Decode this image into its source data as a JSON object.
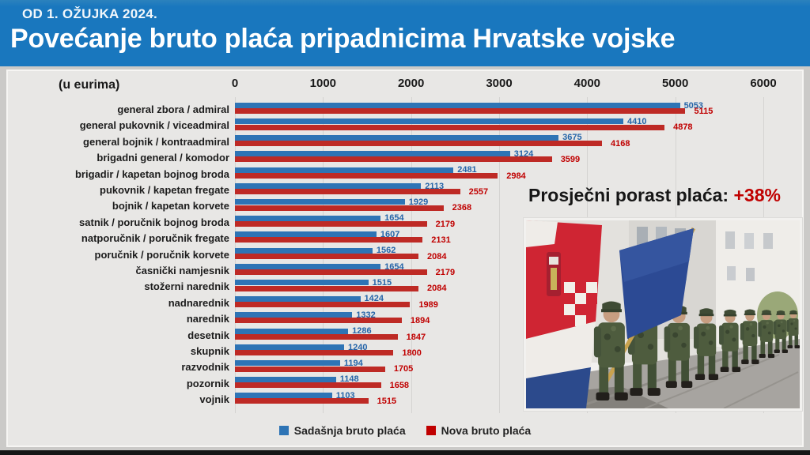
{
  "header": {
    "kicker": "OD 1. OŽUJKA 2024.",
    "title": "Povećanje bruto plaća pripadnicima Hrvatske vojske"
  },
  "chart_data": {
    "type": "bar",
    "orientation": "horizontal",
    "title": "Povećanje bruto plaća pripadnicima Hrvatske vojske",
    "unit_label": "(u eurima)",
    "xlabel": "",
    "ylabel": "",
    "xlim": [
      0,
      6000
    ],
    "x_ticks": [
      0,
      1000,
      2000,
      3000,
      4000,
      5000,
      6000
    ],
    "grid": "vertical",
    "legend_position": "bottom",
    "categories": [
      "general zbora / admiral",
      "general pukovnik / viceadmiral",
      "general bojnik / kontraadmiral",
      "brigadni general / komodor",
      "brigadir / kapetan bojnog broda",
      "pukovnik / kapetan fregate",
      "bojnik / kapetan korvete",
      "satnik / poručnik bojnog broda",
      "natporučnik / poručnik fregate",
      "poručnik / poručnik korvete",
      "časnički namjesnik",
      "stožerni narednik",
      "nadnarednik",
      "narednik",
      "desetnik",
      "skupnik",
      "razvodnik",
      "pozornik",
      "vojnik"
    ],
    "series": [
      {
        "name": "Sadašnja bruto plaća",
        "color": "#2e74b5",
        "values": [
          5053,
          4410,
          3675,
          3124,
          2481,
          2113,
          1929,
          1654,
          1607,
          1562,
          1654,
          1515,
          1424,
          1332,
          1286,
          1240,
          1194,
          1148,
          1103
        ]
      },
      {
        "name": "Nova bruto plaća",
        "color": "#be2a25",
        "values": [
          5115,
          4878,
          4168,
          3599,
          2984,
          2557,
          2368,
          2179,
          2131,
          2084,
          2179,
          2084,
          1989,
          1894,
          1847,
          1800,
          1705,
          1658,
          1515
        ]
      }
    ]
  },
  "overlay": {
    "average_increase_label": "Prosječni porast plaća:",
    "average_increase_value": "+38%"
  },
  "icons": {
    "photo": "soldiers-marching-with-croatian-flag"
  },
  "colors": {
    "header_bg": "#1977be",
    "panel_bg": "#e8e7e5",
    "bar_current": "#2e74b5",
    "bar_new": "#be2a25",
    "value_current": "#2464a8",
    "value_new": "#c00000",
    "accent_red": "#c00000"
  }
}
